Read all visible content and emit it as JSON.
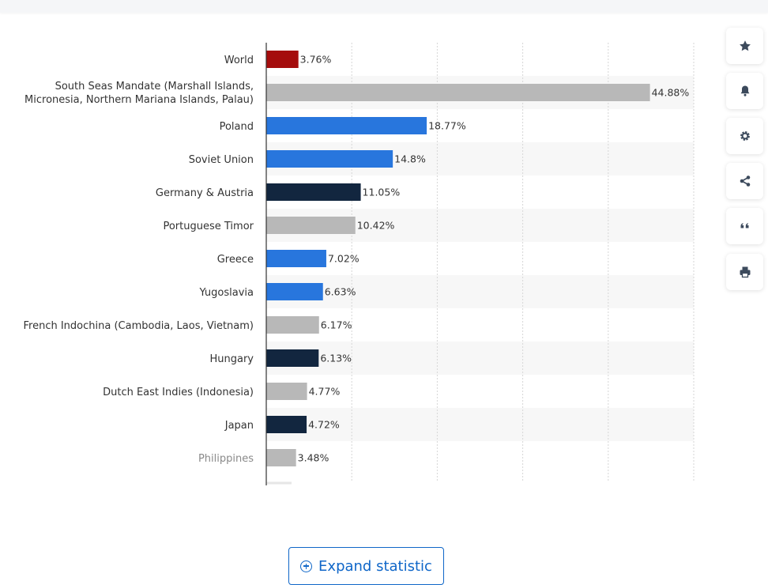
{
  "chart_data": {
    "type": "bar",
    "orientation": "horizontal",
    "categories": [
      "World",
      "South Seas Mandate (Marshall Islands, Micronesia, Northern Mariana Islands, Palau)",
      "Poland",
      "Soviet Union",
      "Germany & Austria",
      "Portuguese Timor",
      "Greece",
      "Yugoslavia",
      "French Indochina (Cambodia, Laos, Vietnam)",
      "Hungary",
      "Dutch East Indies (Indonesia)",
      "Japan",
      "Philippines"
    ],
    "values": [
      3.76,
      44.88,
      18.77,
      14.8,
      11.05,
      10.42,
      7.02,
      6.63,
      6.17,
      6.13,
      4.77,
      4.72,
      3.48
    ],
    "value_labels": [
      "3.76%",
      "44.88%",
      "18.77%",
      "14.8%",
      "11.05%",
      "10.42%",
      "7.02%",
      "6.63%",
      "6.17%",
      "6.13%",
      "4.77%",
      "4.72%",
      "3.48%"
    ],
    "bar_colors": [
      "#a50d0d",
      "#b8b8b8",
      "#2876dd",
      "#2876dd",
      "#12263f",
      "#b8b8b8",
      "#2876dd",
      "#2876dd",
      "#b8b8b8",
      "#12263f",
      "#b8b8b8",
      "#12263f",
      "#b8b8b8"
    ],
    "xlim": [
      0,
      50
    ],
    "grid": true,
    "title": "",
    "xlabel": "",
    "ylabel": "",
    "legend": "none"
  },
  "sidebar": {
    "buttons": [
      {
        "name": "star-icon"
      },
      {
        "name": "bell-icon"
      },
      {
        "name": "gear-icon"
      },
      {
        "name": "share-icon"
      },
      {
        "name": "quote-icon"
      },
      {
        "name": "print-icon"
      }
    ]
  },
  "expand_button": {
    "label": "Expand statistic"
  },
  "colors": {
    "accent": "#0f66c8",
    "row_stripe": "#f7f7f7",
    "grid": "#d6d6d6"
  }
}
